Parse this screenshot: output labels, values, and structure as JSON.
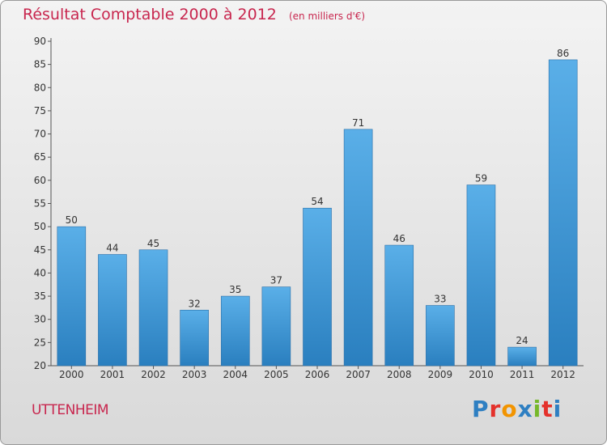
{
  "header": {
    "title": "Résultat Comptable 2000 à 2012",
    "subtitle": "(en milliers d'€)"
  },
  "footer": {
    "commune": "UTTENHEIM",
    "logo_text": "Proxiti",
    "logo_colors": [
      "#2e7fc2",
      "#e4312b",
      "#f29400",
      "#2e7fc2",
      "#76b82a",
      "#e4312b",
      "#2e7fc2"
    ]
  },
  "colors": {
    "title": "#c8264e",
    "bar_top": "#5aafe8",
    "bar_bottom": "#2a7fbf"
  },
  "chart_data": {
    "type": "bar",
    "title": "Résultat Comptable 2000 à 2012",
    "subtitle": "(en milliers d'€)",
    "categories": [
      "2000",
      "2001",
      "2002",
      "2003",
      "2004",
      "2005",
      "2006",
      "2007",
      "2008",
      "2009",
      "2010",
      "2011",
      "2012"
    ],
    "values": [
      50,
      44,
      45,
      32,
      35,
      37,
      54,
      71,
      46,
      33,
      59,
      24,
      86
    ],
    "data_labels": [
      "50",
      "44",
      "45",
      "32",
      "35",
      "37",
      "54",
      "71",
      "46",
      "33",
      "59",
      "24",
      "86"
    ],
    "ylim": [
      20,
      90
    ],
    "yticks": [
      20,
      25,
      30,
      35,
      40,
      45,
      50,
      55,
      60,
      65,
      70,
      75,
      80,
      85,
      90
    ],
    "grid": false,
    "legend": "none"
  }
}
